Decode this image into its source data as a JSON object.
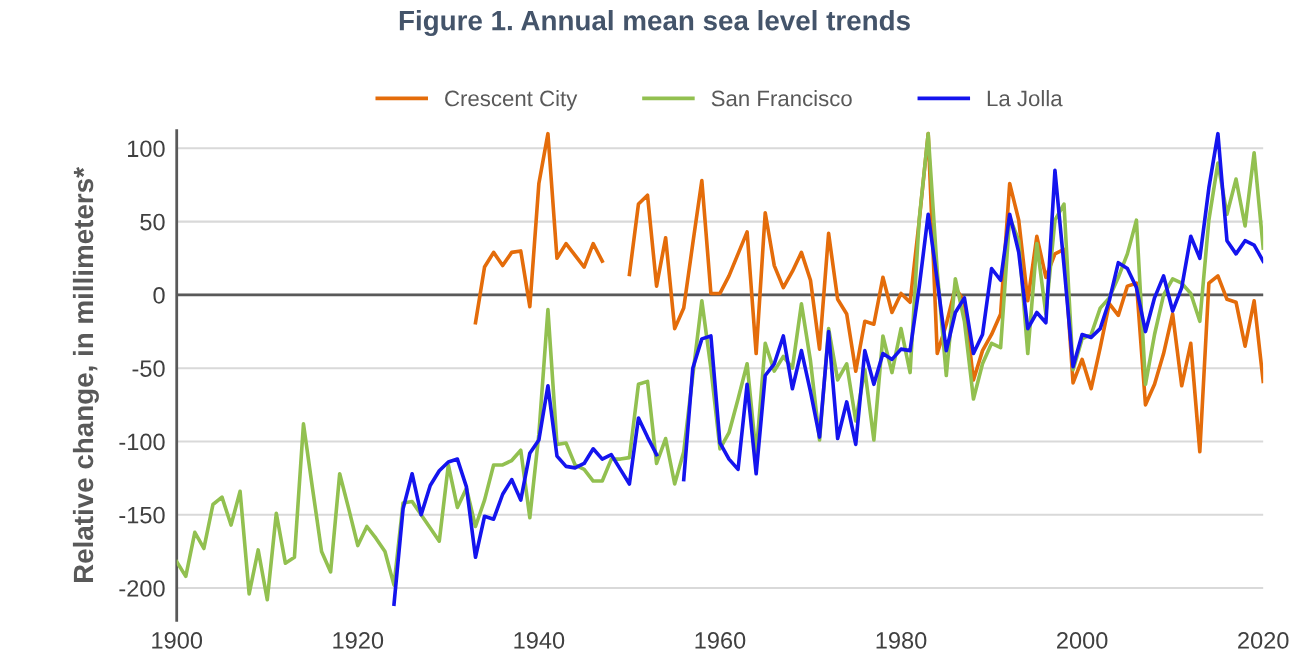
{
  "chart_data": {
    "type": "line",
    "title": "Figure 1. Annual mean sea level trends",
    "ylabel": "Relative change, in millimeters*",
    "x": [
      1900,
      1901,
      1902,
      1903,
      1904,
      1905,
      1906,
      1907,
      1908,
      1909,
      1910,
      1911,
      1912,
      1913,
      1914,
      1915,
      1916,
      1917,
      1918,
      1919,
      1920,
      1921,
      1922,
      1923,
      1924,
      1925,
      1926,
      1927,
      1928,
      1929,
      1930,
      1931,
      1932,
      1933,
      1934,
      1935,
      1936,
      1937,
      1938,
      1939,
      1940,
      1941,
      1942,
      1943,
      1944,
      1945,
      1946,
      1947,
      1948,
      1949,
      1950,
      1951,
      1952,
      1953,
      1954,
      1955,
      1956,
      1957,
      1958,
      1959,
      1960,
      1961,
      1962,
      1963,
      1964,
      1965,
      1966,
      1967,
      1968,
      1969,
      1970,
      1971,
      1972,
      1973,
      1974,
      1975,
      1976,
      1977,
      1978,
      1979,
      1980,
      1981,
      1982,
      1983,
      1984,
      1985,
      1986,
      1987,
      1988,
      1989,
      1990,
      1991,
      1992,
      1993,
      1994,
      1995,
      1996,
      1997,
      1998,
      1999,
      2000,
      2001,
      2002,
      2003,
      2004,
      2005,
      2006,
      2007,
      2008,
      2009,
      2010,
      2011,
      2012,
      2013,
      2014,
      2015,
      2016,
      2017,
      2018,
      2019,
      2020
    ],
    "series": [
      {
        "name": "Crescent City",
        "color": "#e46c0a",
        "values": [
          null,
          null,
          null,
          null,
          null,
          null,
          null,
          null,
          null,
          null,
          null,
          null,
          null,
          null,
          null,
          null,
          null,
          null,
          null,
          null,
          null,
          null,
          null,
          null,
          null,
          null,
          null,
          null,
          null,
          null,
          null,
          null,
          null,
          -19,
          19,
          29,
          20,
          29,
          30,
          -8,
          76,
          110,
          25,
          35,
          27,
          19,
          35,
          23,
          null,
          null,
          14,
          62,
          68,
          6,
          39,
          -23,
          -9,
          35,
          78,
          1,
          1,
          13,
          28,
          43,
          -40,
          56,
          20,
          5,
          16,
          29,
          10,
          -37,
          42,
          -3,
          -13,
          -52,
          -18,
          -20,
          12,
          -12,
          1,
          -5,
          50,
          110,
          -40,
          -20,
          5,
          -5,
          -58,
          -38,
          -27,
          -13,
          76,
          51,
          -4,
          40,
          12,
          28,
          31,
          -60,
          -44,
          -64,
          -36,
          -6,
          -14,
          6,
          8,
          -75,
          -61,
          -40,
          -13,
          -62,
          -33,
          -107,
          8,
          13,
          -3,
          -5,
          -35,
          -4,
          -59
        ]
      },
      {
        "name": "San Francisco",
        "color": "#92c050",
        "values": [
          -182,
          -192,
          -162,
          -173,
          -143,
          -138,
          -157,
          -134,
          -204,
          -174,
          -208,
          -149,
          -183,
          -179,
          -88,
          -132,
          -175,
          -189,
          -122,
          -146,
          -171,
          -158,
          -166,
          -175,
          -198,
          -142,
          -141,
          -150,
          -159,
          -168,
          -116,
          -145,
          -132,
          -158,
          -140,
          -116,
          -116,
          -113,
          -106,
          -152,
          -95,
          -10,
          -102,
          -101,
          -116,
          -119,
          -127,
          -127,
          -112,
          -112,
          -111,
          -61,
          -59,
          -115,
          -98,
          -129,
          -107,
          -55,
          -4,
          -50,
          -105,
          -94,
          -71,
          -47,
          -109,
          -33,
          -52,
          -42,
          -50,
          -6,
          -45,
          -99,
          -23,
          -58,
          -47,
          -86,
          -51,
          -99,
          -28,
          -53,
          -23,
          -53,
          51,
          110,
          16,
          -55,
          11,
          -18,
          -71,
          -47,
          -33,
          -36,
          53,
          37,
          -40,
          35,
          -13,
          51,
          62,
          -51,
          -30,
          -27,
          -9,
          -2,
          12,
          28,
          51,
          -61,
          -27,
          0,
          11,
          8,
          1,
          -18,
          51,
          90,
          55,
          79,
          47,
          97,
          32
        ]
      },
      {
        "name": "La Jolla",
        "color": "#1414ee",
        "values": [
          null,
          null,
          null,
          null,
          null,
          null,
          null,
          null,
          null,
          null,
          null,
          null,
          null,
          null,
          null,
          null,
          null,
          null,
          null,
          null,
          null,
          null,
          null,
          null,
          -211,
          -146,
          -122,
          -150,
          -130,
          -120,
          -114,
          -112,
          -131,
          -179,
          -151,
          -153,
          -136,
          -126,
          -140,
          -108,
          -99,
          -62,
          -110,
          -117,
          -118,
          -115,
          -105,
          -112,
          -109,
          -119,
          -129,
          -84,
          -97,
          -109,
          null,
          null,
          -126,
          -50,
          -30,
          -28,
          -101,
          -112,
          -119,
          -61,
          -122,
          -55,
          -47,
          -28,
          -64,
          -38,
          -66,
          -97,
          -25,
          -98,
          -73,
          -102,
          -38,
          -61,
          -40,
          -44,
          -37,
          -38,
          5,
          55,
          10,
          -38,
          -12,
          -2,
          -40,
          -27,
          18,
          10,
          55,
          29,
          -23,
          -12,
          -19,
          85,
          20,
          -49,
          -27,
          -29,
          -23,
          -4,
          22,
          18,
          5,
          -25,
          -2,
          13,
          -11,
          5,
          40,
          25,
          73,
          110,
          37,
          28,
          37,
          34,
          23
        ]
      }
    ],
    "xlim": [
      1900,
      2020
    ],
    "xticks": [
      1900,
      1920,
      1940,
      1960,
      1980,
      2000,
      2020
    ],
    "ylim": [
      -222,
      112
    ],
    "yticks": [
      -200,
      -150,
      -100,
      -50,
      0,
      50,
      100
    ],
    "ref_lines": [
      {
        "axis": "y",
        "value": 0,
        "color": "#595959"
      }
    ],
    "grid": "y",
    "legend": "top",
    "marker": "none",
    "line_style": "solid"
  }
}
